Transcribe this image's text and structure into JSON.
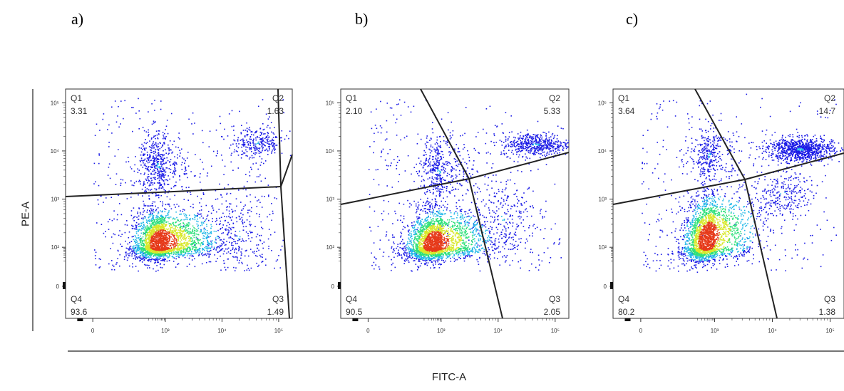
{
  "panel_letters": [
    "a)",
    "b)",
    "c)"
  ],
  "ylabel": "PE-A",
  "xlabel": "FITC-A",
  "colors": {
    "density_low": "#1a1ae6",
    "density_mid_low": "#22b8e8",
    "density_mid": "#2ee07a",
    "density_mid_high": "#d8e82a",
    "density_high": "#e63a1a",
    "gate_line": "#222222"
  },
  "chart_data": [
    {
      "type": "scatter",
      "title": "a)",
      "xlabel": "FITC-A",
      "ylabel": "PE-A",
      "scale": "biexponential",
      "x_ticks": [
        "0",
        "10³",
        "10⁴",
        "10⁵"
      ],
      "y_ticks": [
        "0",
        "10²",
        "10³",
        "10⁴",
        "10⁵"
      ],
      "quadrants": [
        {
          "name": "Q1",
          "value": "3.31"
        },
        {
          "name": "Q2",
          "value": "1.63"
        },
        {
          "name": "Q3",
          "value": "1.49"
        },
        {
          "name": "Q4",
          "value": "93.6"
        }
      ],
      "populations": [
        {
          "cx": 600,
          "cy": 130,
          "sx": 0.55,
          "sy": 0.32,
          "rot": 0.1,
          "n": 2600,
          "hot": true
        },
        {
          "cx": 500,
          "cy": 5000,
          "sx": 0.4,
          "sy": 0.35,
          "rot": 0,
          "n": 500,
          "hot": false
        },
        {
          "cx": 40000,
          "cy": 15000,
          "sx": 0.25,
          "sy": 0.18,
          "rot": 0,
          "n": 280,
          "hot": false
        },
        {
          "cx": 20000,
          "cy": 200,
          "sx": 0.3,
          "sy": 0.6,
          "rot": 0,
          "n": 260,
          "hot": false
        }
      ]
    },
    {
      "type": "scatter",
      "title": "b)",
      "xlabel": "FITC-A",
      "ylabel": "PE-A",
      "scale": "biexponential",
      "x_ticks": [
        "0",
        "10³",
        "10⁴",
        "10⁵"
      ],
      "y_ticks": [
        "0",
        "10²",
        "10³",
        "10⁴",
        "10⁵"
      ],
      "quadrants": [
        {
          "name": "Q1",
          "value": "2.10"
        },
        {
          "name": "Q2",
          "value": "5.33"
        },
        {
          "name": "Q3",
          "value": "2.05"
        },
        {
          "name": "Q4",
          "value": "90.5"
        }
      ],
      "populations": [
        {
          "cx": 500,
          "cy": 120,
          "sx": 0.55,
          "sy": 0.33,
          "rot": 0.15,
          "n": 2600,
          "hot": true
        },
        {
          "cx": 800,
          "cy": 4000,
          "sx": 0.35,
          "sy": 0.35,
          "rot": 0,
          "n": 420,
          "hot": false
        },
        {
          "cx": 45000,
          "cy": 14000,
          "sx": 0.3,
          "sy": 0.12,
          "rot": 0,
          "n": 520,
          "hot": false
        },
        {
          "cx": 12000,
          "cy": 400,
          "sx": 0.3,
          "sy": 0.5,
          "rot": 0,
          "n": 260,
          "hot": false
        }
      ]
    },
    {
      "type": "scatter",
      "title": "c)",
      "xlabel": "FITC-A",
      "ylabel": "PE-A",
      "scale": "biexponential",
      "x_ticks": [
        "0",
        "10³",
        "10⁴",
        "10⁵"
      ],
      "y_ticks": [
        "0",
        "10²",
        "10³",
        "10⁴",
        "10⁵"
      ],
      "quadrants": [
        {
          "name": "Q1",
          "value": "3.64"
        },
        {
          "name": "Q2",
          "value": "14.7"
        },
        {
          "name": "Q3",
          "value": "1.38"
        },
        {
          "name": "Q4",
          "value": "80.2"
        }
      ],
      "populations": [
        {
          "cx": 500,
          "cy": 160,
          "sx": 0.5,
          "sy": 0.38,
          "rot": 0.55,
          "n": 2300,
          "hot": true
        },
        {
          "cx": 30000,
          "cy": 11000,
          "sx": 0.28,
          "sy": 0.12,
          "rot": 0,
          "n": 900,
          "hot": false
        },
        {
          "cx": 600,
          "cy": 8000,
          "sx": 0.4,
          "sy": 0.3,
          "rot": 0,
          "n": 350,
          "hot": false
        },
        {
          "cx": 15000,
          "cy": 1300,
          "sx": 0.25,
          "sy": 0.25,
          "rot": 0.3,
          "n": 260,
          "hot": false
        }
      ]
    }
  ]
}
